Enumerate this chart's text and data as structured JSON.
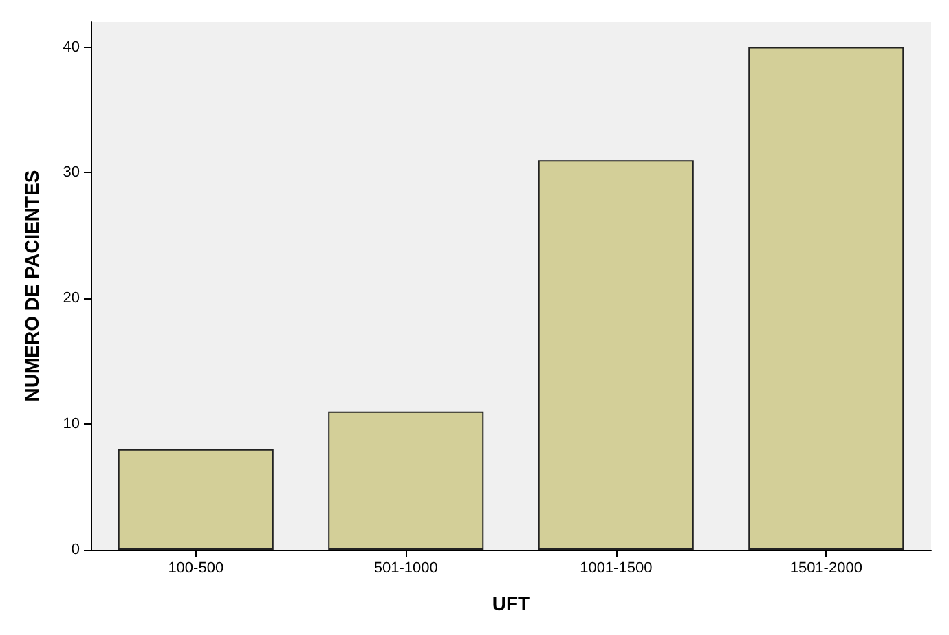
{
  "chart_data": {
    "type": "bar",
    "xlabel": "UFT",
    "ylabel": "NUMERO DE PACIENTES",
    "categories": [
      "100-500",
      "501-1000",
      "1001-1500",
      "1501-2000"
    ],
    "values": [
      8,
      11,
      31,
      40
    ],
    "color": "#d3cf98",
    "ylim": [
      0,
      42
    ],
    "yticks": [
      0,
      10,
      20,
      30,
      40
    ],
    "grid": false
  }
}
